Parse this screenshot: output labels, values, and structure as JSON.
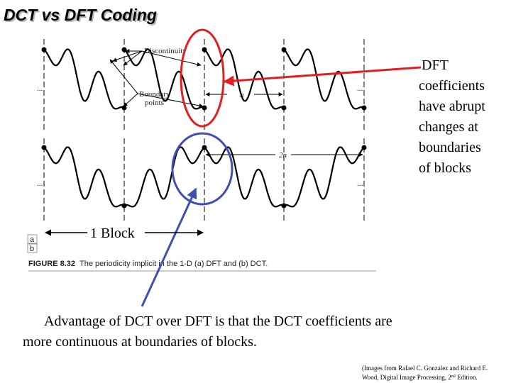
{
  "title": "DCT vs DFT Coding",
  "figure": {
    "discontinuity": "Discontinuity",
    "boundary_line1": "Boundary",
    "boundary_line2": "points",
    "n_label": "n",
    "two_n_label": "2n",
    "ellipsis": "...",
    "panel_a": "a",
    "panel_b": "b",
    "caption_number": "FIGURE 8.32",
    "caption_text": "The periodicity implicit in the 1-D (a) DFT and (b) DCT."
  },
  "callout": [
    "DFT",
    "coefficients",
    "have abrupt",
    "changes at",
    "boundaries",
    "of blocks"
  ],
  "block_label": "1 Block",
  "body": [
    "Advantage of DCT over DFT is that the DCT coefficients are",
    "more continuous at boundaries of blocks."
  ],
  "citation": [
    "(Images from Rafael C. Gonzalez and Richard E.",
    "Wood, Digital Image Processing, 2",
    "nd",
    " Edition."
  ]
}
